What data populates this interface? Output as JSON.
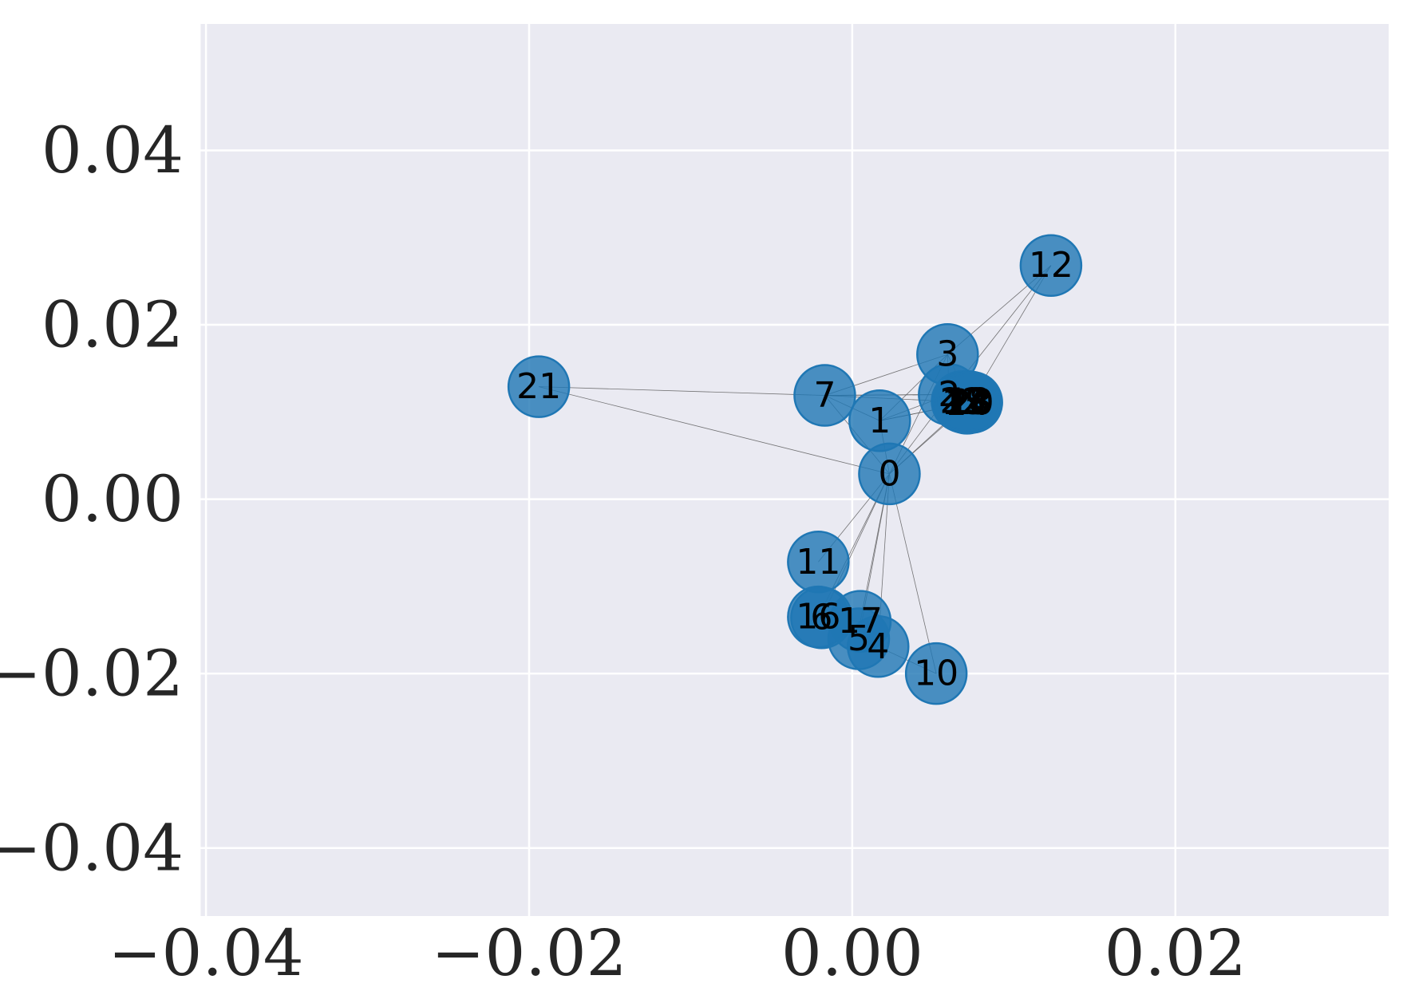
{
  "chart_data": {
    "type": "scatter",
    "subtype": "network-graph",
    "title": "",
    "xlabel": "",
    "ylabel": "",
    "xlim": [
      -0.0404,
      0.0332
    ],
    "ylim": [
      -0.0478,
      0.0545
    ],
    "grid": true,
    "x_ticks": [
      {
        "value": -0.04,
        "label": "−0.04"
      },
      {
        "value": -0.02,
        "label": "−0.02"
      },
      {
        "value": 0.0,
        "label": "0.00"
      },
      {
        "value": 0.02,
        "label": "0.02"
      }
    ],
    "y_ticks": [
      {
        "value": 0.04,
        "label": "0.04"
      },
      {
        "value": 0.02,
        "label": "0.02"
      },
      {
        "value": 0.0,
        "label": "0.00"
      },
      {
        "value": -0.02,
        "label": "−0.02"
      },
      {
        "value": -0.04,
        "label": "−0.04"
      }
    ],
    "nodes": [
      {
        "id": "0",
        "x": 0.0023,
        "y": 0.0029
      },
      {
        "id": "1",
        "x": 0.0017,
        "y": 0.009
      },
      {
        "id": "2",
        "x": 0.006,
        "y": 0.012
      },
      {
        "id": "3",
        "x": 0.0059,
        "y": 0.0166
      },
      {
        "id": "4",
        "x": 0.0016,
        "y": -0.0169
      },
      {
        "id": "5",
        "x": 0.0004,
        "y": -0.016
      },
      {
        "id": "6",
        "x": -0.0019,
        "y": -0.0136
      },
      {
        "id": "7",
        "x": -0.0017,
        "y": 0.0119
      },
      {
        "id": "10",
        "x": 0.0052,
        "y": -0.02
      },
      {
        "id": "11",
        "x": -0.0021,
        "y": -0.0072
      },
      {
        "id": "12",
        "x": 0.0123,
        "y": 0.0268
      },
      {
        "id": "13",
        "x": 0.0073,
        "y": 0.0111
      },
      {
        "id": "14",
        "x": 0.0071,
        "y": 0.011
      },
      {
        "id": "15",
        "x": 0.0069,
        "y": 0.0111
      },
      {
        "id": "16",
        "x": -0.0021,
        "y": -0.0135
      },
      {
        "id": "17",
        "x": 0.0005,
        "y": -0.014
      },
      {
        "id": "18",
        "x": 0.0072,
        "y": 0.0112
      },
      {
        "id": "19",
        "x": 0.007,
        "y": 0.0112
      },
      {
        "id": "20",
        "x": 0.0074,
        "y": 0.0111
      },
      {
        "id": "21",
        "x": -0.0194,
        "y": 0.0129
      },
      {
        "id": "22",
        "x": 0.0068,
        "y": 0.0112
      },
      {
        "id": "23",
        "x": 0.0072,
        "y": 0.0111
      }
    ],
    "edges": [
      [
        "0",
        "1"
      ],
      [
        "0",
        "2"
      ],
      [
        "0",
        "3"
      ],
      [
        "0",
        "7"
      ],
      [
        "0",
        "21"
      ],
      [
        "0",
        "11"
      ],
      [
        "0",
        "5"
      ],
      [
        "0",
        "4"
      ],
      [
        "0",
        "6"
      ],
      [
        "0",
        "17"
      ],
      [
        "0",
        "10"
      ],
      [
        "0",
        "13"
      ],
      [
        "0",
        "14"
      ],
      [
        "0",
        "16"
      ],
      [
        "1",
        "2"
      ],
      [
        "1",
        "7"
      ],
      [
        "1",
        "13"
      ],
      [
        "1",
        "14"
      ],
      [
        "1",
        "3"
      ],
      [
        "2",
        "3"
      ],
      [
        "2",
        "12"
      ],
      [
        "2",
        "7"
      ],
      [
        "2",
        "13"
      ],
      [
        "2",
        "15"
      ],
      [
        "3",
        "7"
      ],
      [
        "3",
        "12"
      ],
      [
        "3",
        "13"
      ],
      [
        "7",
        "21"
      ],
      [
        "7",
        "13"
      ],
      [
        "7",
        "2"
      ],
      [
        "12",
        "13"
      ],
      [
        "4",
        "10"
      ],
      [
        "4",
        "5"
      ],
      [
        "5",
        "6"
      ],
      [
        "6",
        "16"
      ],
      [
        "6",
        "17"
      ]
    ],
    "colors": {
      "background": "#eaeaf2",
      "grid": "#ffffff",
      "node_fill": "#1f77b4",
      "node_stroke": "#1f77b4",
      "edge": "#555555"
    }
  }
}
